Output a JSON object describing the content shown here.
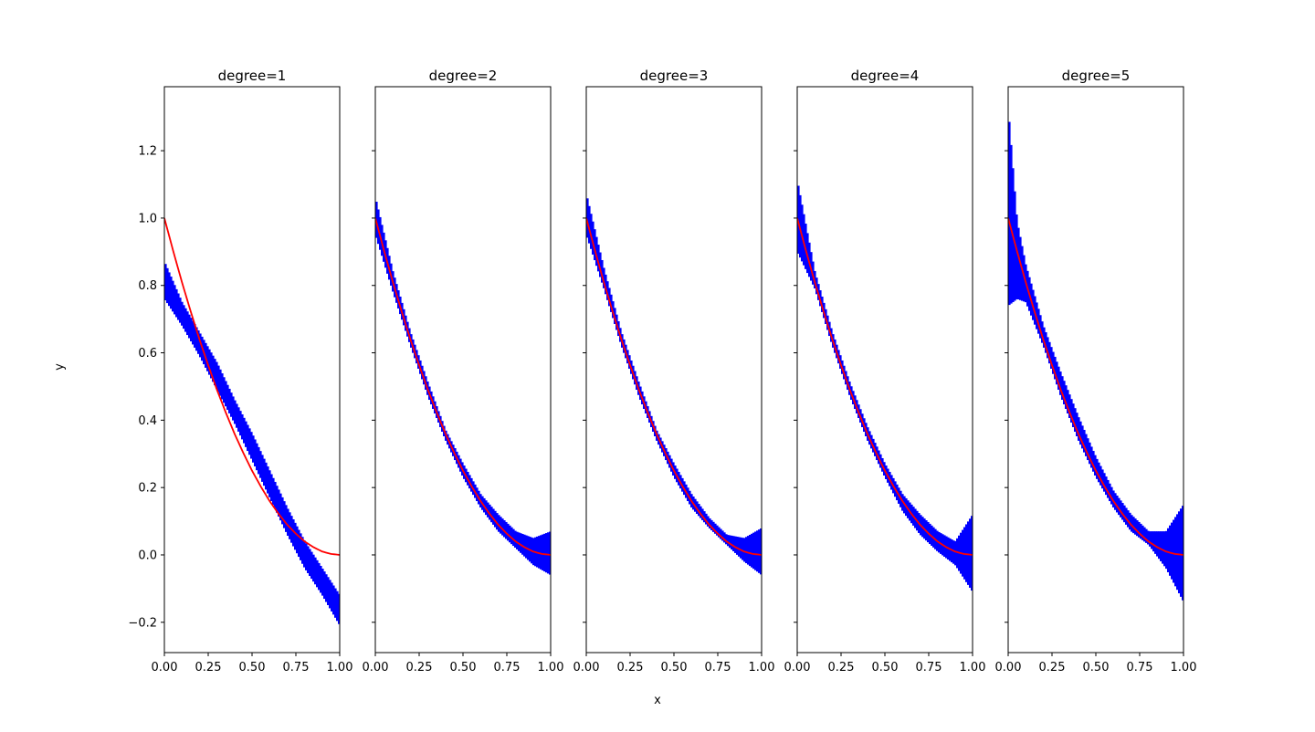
{
  "chart_data": {
    "type": "line",
    "xlabel": "x",
    "ylabel": "y",
    "xlim": [
      0,
      1
    ],
    "ylim": [
      -0.29,
      1.39
    ],
    "x_ticks": [
      0,
      0.25,
      0.5,
      0.75,
      1
    ],
    "x_tick_labels": [
      "0.00",
      "0.25",
      "0.50",
      "0.75",
      "1.00"
    ],
    "y_ticks": [
      -0.2,
      0,
      0.2,
      0.4,
      0.6,
      0.8,
      1.0,
      1.2
    ],
    "y_tick_labels": [
      "−0.2",
      "0.0",
      "0.2",
      "0.4",
      "0.6",
      "0.8",
      "1.0",
      "1.2"
    ],
    "shared_y": true,
    "grid": false,
    "colors": {
      "true_curve": "#ff0000",
      "band": "#0000ff"
    },
    "true_function": {
      "x": [
        0,
        0.05,
        0.1,
        0.15,
        0.2,
        0.25,
        0.3,
        0.35,
        0.4,
        0.45,
        0.5,
        0.55,
        0.6,
        0.65,
        0.7,
        0.75,
        0.8,
        0.85,
        0.9,
        0.95,
        1.0
      ],
      "y": [
        1.0,
        0.903,
        0.81,
        0.723,
        0.64,
        0.563,
        0.49,
        0.423,
        0.36,
        0.303,
        0.25,
        0.203,
        0.16,
        0.123,
        0.09,
        0.063,
        0.04,
        0.023,
        0.01,
        0.003,
        0.0
      ]
    },
    "panels": [
      {
        "title": "degree=1",
        "band": {
          "x": [
            0,
            0.1,
            0.2,
            0.3,
            0.4,
            0.5,
            0.6,
            0.7,
            0.8,
            0.9,
            1.0
          ],
          "lower": [
            0.76,
            0.68,
            0.59,
            0.49,
            0.39,
            0.28,
            0.17,
            0.06,
            -0.04,
            -0.12,
            -0.21
          ],
          "upper": [
            0.87,
            0.75,
            0.66,
            0.57,
            0.46,
            0.36,
            0.25,
            0.14,
            0.04,
            -0.04,
            -0.12
          ]
        }
      },
      {
        "title": "degree=2",
        "band": {
          "x": [
            0,
            0.1,
            0.2,
            0.3,
            0.4,
            0.5,
            0.6,
            0.7,
            0.8,
            0.9,
            1.0
          ],
          "lower": [
            0.95,
            0.78,
            0.62,
            0.47,
            0.34,
            0.23,
            0.14,
            0.07,
            0.02,
            -0.03,
            -0.06
          ],
          "upper": [
            1.06,
            0.84,
            0.66,
            0.51,
            0.37,
            0.27,
            0.18,
            0.12,
            0.07,
            0.05,
            0.07
          ]
        }
      },
      {
        "title": "degree=3",
        "band": {
          "x": [
            0,
            0.1,
            0.2,
            0.3,
            0.4,
            0.5,
            0.6,
            0.7,
            0.8,
            0.9,
            1.0
          ],
          "lower": [
            0.95,
            0.79,
            0.62,
            0.47,
            0.34,
            0.23,
            0.14,
            0.08,
            0.03,
            -0.02,
            -0.06
          ],
          "upper": [
            1.07,
            0.85,
            0.66,
            0.51,
            0.37,
            0.27,
            0.18,
            0.11,
            0.06,
            0.05,
            0.08
          ]
        }
      },
      {
        "title": "degree=4",
        "band": {
          "x": [
            0,
            0.1,
            0.2,
            0.3,
            0.4,
            0.5,
            0.6,
            0.7,
            0.8,
            0.9,
            1.0
          ],
          "lower": [
            0.9,
            0.79,
            0.62,
            0.47,
            0.34,
            0.23,
            0.13,
            0.06,
            0.01,
            -0.03,
            -0.11
          ],
          "upper": [
            1.11,
            0.84,
            0.66,
            0.51,
            0.38,
            0.27,
            0.18,
            0.12,
            0.07,
            0.04,
            0.12
          ]
        }
      },
      {
        "title": "degree=5",
        "band": {
          "x": [
            0,
            0.05,
            0.1,
            0.2,
            0.3,
            0.4,
            0.5,
            0.6,
            0.7,
            0.8,
            0.9,
            1.0
          ],
          "lower": [
            0.74,
            0.76,
            0.75,
            0.62,
            0.47,
            0.34,
            0.23,
            0.14,
            0.07,
            0.03,
            -0.04,
            -0.14
          ],
          "upper": [
            1.32,
            0.99,
            0.86,
            0.68,
            0.54,
            0.41,
            0.29,
            0.19,
            0.12,
            0.07,
            0.07,
            0.15
          ]
        }
      }
    ]
  }
}
